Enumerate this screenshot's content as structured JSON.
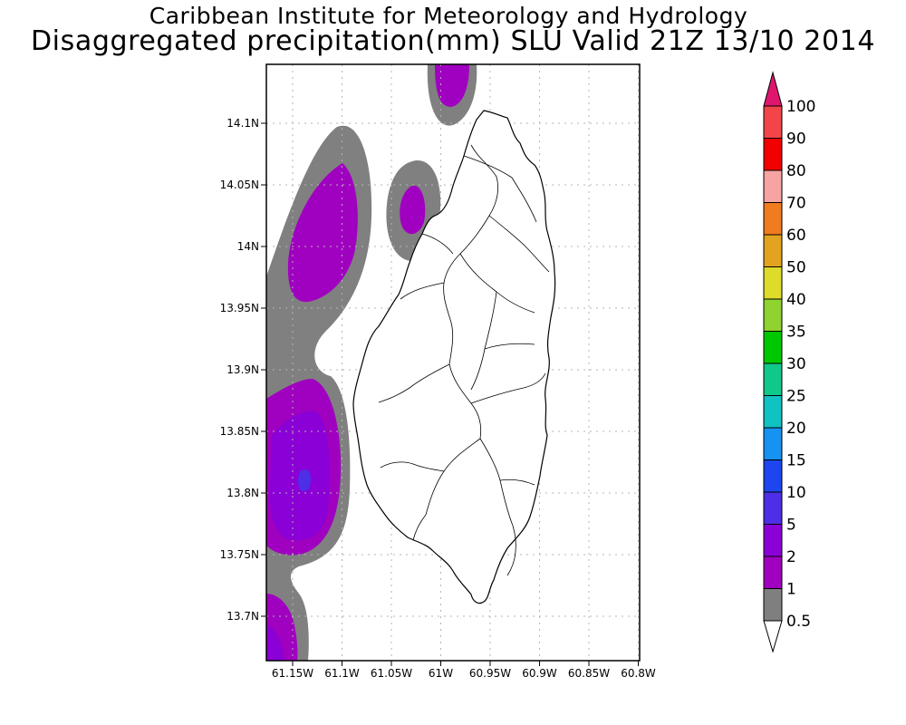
{
  "header": {
    "title_line1": "Caribbean Institute for Meteorology and Hydrology",
    "title_line2": "Disaggregated precipitation(mm) SLU Valid 21Z 13/10 2014"
  },
  "map": {
    "lat_labels": [
      "14.1N",
      "14.05N",
      "14N",
      "13.95N",
      "13.9N",
      "13.85N",
      "13.8N",
      "13.75N",
      "13.7N"
    ],
    "lon_labels": [
      "61.15W",
      "61.1W",
      "61.05W",
      "61W",
      "60.95W",
      "60.9W",
      "60.85W",
      "60.8W"
    ],
    "lat_values": [
      14.1,
      14.05,
      14.0,
      13.95,
      13.9,
      13.85,
      13.8,
      13.75,
      13.7
    ],
    "lon_values": [
      -61.15,
      -61.1,
      -61.05,
      -61.0,
      -60.95,
      -60.9,
      -60.85,
      -60.8
    ]
  },
  "colorbar": {
    "labels": [
      "100",
      "90",
      "80",
      "70",
      "60",
      "50",
      "40",
      "35",
      "30",
      "25",
      "20",
      "15",
      "10",
      "5",
      "2",
      "1",
      "0.5"
    ],
    "colors": [
      "#e0156e",
      "#f2454a",
      "#f20000",
      "#f7a3a3",
      "#f07c1f",
      "#e2a321",
      "#dfdb2a",
      "#8ed32f",
      "#00c800",
      "#10c88a",
      "#10c2c2",
      "#1592f2",
      "#1e46f0",
      "#4e2ee6",
      "#8a00d6",
      "#a000c0",
      "#7f7f7f",
      "#ffffff"
    ]
  },
  "precip_colors": {
    "shade_0_5": "#808080",
    "shade_1": "#a000c0",
    "shade_2": "#8a00d6",
    "shade_5": "#4e2ee6"
  }
}
